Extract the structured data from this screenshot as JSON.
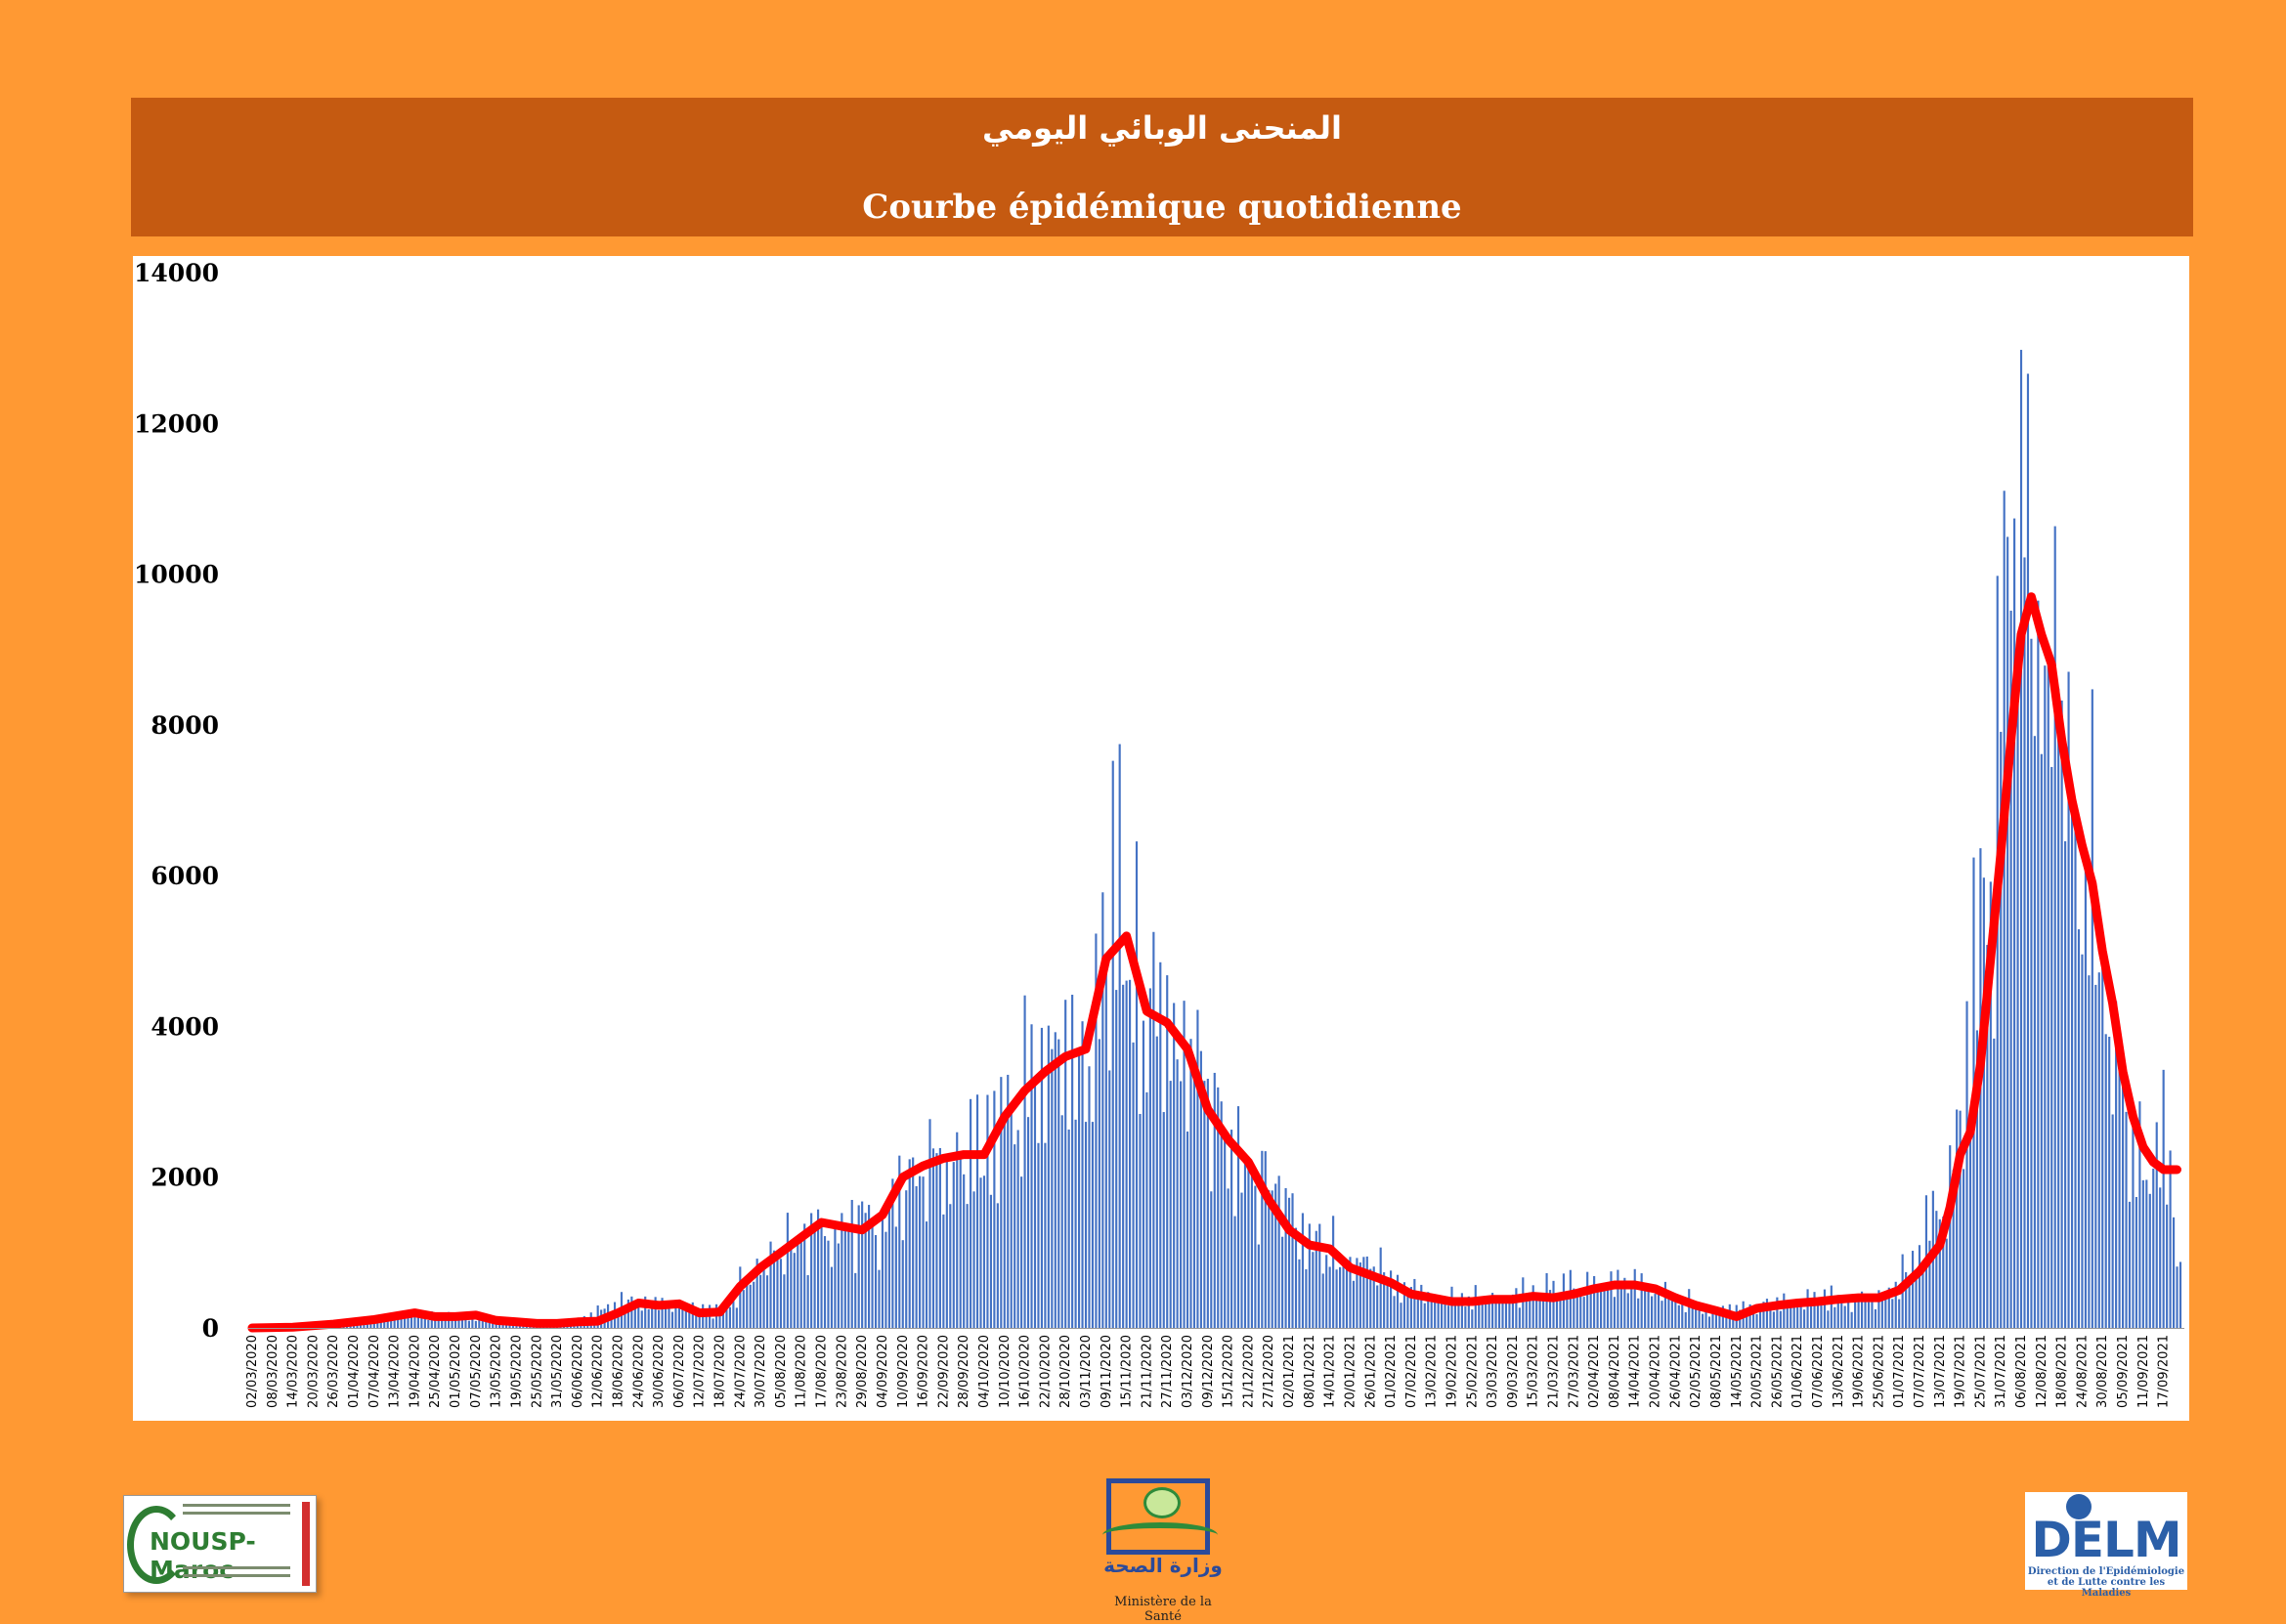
{
  "header": {
    "title_ar": "المنحنى الوبائي اليومي",
    "title_fr": "Courbe épidémique quotidienne"
  },
  "logos": {
    "left": {
      "name": "NOUSP-Maroc"
    },
    "center": {
      "text_ar": "وزارة الصحة",
      "caption": "Ministère de la Santé"
    },
    "right": {
      "name": "DELM",
      "caption_line1": "Direction de l'Epidémiologie",
      "caption_line2": "et de Lutte contre les Maladies"
    }
  },
  "colors": {
    "background": "#FF9933",
    "header": "#C55A11",
    "bars": "#4472C4",
    "moving_average": "#FF0000"
  },
  "chart_data": {
    "type": "bar",
    "title": "Courbe épidémique quotidienne",
    "x_start": "02/03/2020",
    "x_end": "22/09/2021",
    "tick_interval_days": 6,
    "x_tick_labels": [
      "02/03/2020",
      "08/03/2020",
      "14/03/2020",
      "20/03/2020",
      "26/03/2020",
      "01/04/2020",
      "07/04/2020",
      "13/04/2020",
      "19/04/2020",
      "25/04/2020",
      "01/05/2020",
      "07/05/2020",
      "13/05/2020",
      "19/05/2020",
      "25/05/2020",
      "31/05/2020",
      "06/06/2020",
      "12/06/2020",
      "18/06/2020",
      "24/06/2020",
      "30/06/2020",
      "06/07/2020",
      "12/07/2020",
      "18/07/2020",
      "24/07/2020",
      "30/07/2020",
      "05/08/2020",
      "11/08/2020",
      "17/08/2020",
      "23/08/2020",
      "29/08/2020",
      "04/09/2020",
      "10/09/2020",
      "16/09/2020",
      "22/09/2020",
      "28/09/2020",
      "04/10/2020",
      "10/10/2020",
      "16/10/2020",
      "22/10/2020",
      "28/10/2020",
      "03/11/2020",
      "09/11/2020",
      "15/11/2020",
      "21/11/2020",
      "27/11/2020",
      "03/12/2020",
      "09/12/2020",
      "15/12/2020",
      "21/12/2020",
      "27/12/2020",
      "02/01/2021",
      "08/01/2021",
      "14/01/2021",
      "20/01/2021",
      "26/01/2021",
      "01/02/2021",
      "07/02/2021",
      "13/02/2021",
      "19/02/2021",
      "25/02/2021",
      "03/03/2021",
      "09/03/2021",
      "15/03/2021",
      "21/03/2021",
      "27/03/2021",
      "02/04/2021",
      "08/04/2021",
      "14/04/2021",
      "20/04/2021",
      "26/04/2021",
      "02/05/2021",
      "08/05/2021",
      "14/05/2021",
      "20/05/2021",
      "26/05/2021",
      "01/06/2021",
      "07/06/2021",
      "13/06/2021",
      "19/06/2021",
      "25/06/2021",
      "01/07/2021",
      "07/07/2021",
      "13/07/2021",
      "19/07/2021",
      "25/07/2021",
      "31/07/2021",
      "06/08/2021",
      "12/08/2021",
      "18/08/2021",
      "24/08/2021",
      "30/08/2021",
      "05/09/2021",
      "11/09/2021",
      "17/09/2021"
    ],
    "ylim": [
      0,
      14000
    ],
    "yticks": [
      0,
      2000,
      4000,
      6000,
      8000,
      10000,
      12000,
      14000
    ],
    "series": [
      {
        "kind": "bar",
        "color": "#4472C4",
        "description": "daily cases, approximate values at tick dates",
        "x": [
          "02/03/2020",
          "14/03/2020",
          "26/03/2020",
          "07/04/2020",
          "19/04/2020",
          "01/05/2020",
          "13/05/2020",
          "25/05/2020",
          "06/06/2020",
          "18/06/2020",
          "24/06/2020",
          "06/07/2020",
          "18/07/2020",
          "30/07/2020",
          "11/08/2020",
          "23/08/2020",
          "04/09/2020",
          "16/09/2020",
          "28/09/2020",
          "10/10/2020",
          "22/10/2020",
          "03/11/2020",
          "09/11/2020",
          "12/11/2020",
          "15/11/2020",
          "21/11/2020",
          "03/12/2020",
          "15/12/2020",
          "27/12/2020",
          "08/01/2021",
          "20/01/2021",
          "01/02/2021",
          "13/02/2021",
          "25/02/2021",
          "09/03/2021",
          "21/03/2021",
          "02/04/2021",
          "14/04/2021",
          "26/04/2021",
          "08/05/2021",
          "20/05/2021",
          "01/06/2021",
          "13/06/2021",
          "25/06/2021",
          "07/07/2021",
          "13/07/2021",
          "19/07/2021",
          "25/07/2021",
          "31/07/2021",
          "04/08/2021",
          "06/08/2021",
          "09/08/2021",
          "12/08/2021",
          "18/08/2021",
          "24/08/2021",
          "30/08/2021",
          "05/09/2021",
          "11/09/2021",
          "17/09/2021",
          "22/09/2021"
        ],
        "y": [
          0,
          20,
          60,
          100,
          200,
          170,
          100,
          70,
          90,
          320,
          350,
          300,
          220,
          900,
          1250,
          1450,
          1500,
          2200,
          2300,
          2800,
          3500,
          3800,
          5300,
          5600,
          5200,
          4300,
          3900,
          2600,
          2100,
          1200,
          900,
          700,
          450,
          400,
          450,
          500,
          620,
          600,
          400,
          250,
          320,
          350,
          400,
          380,
          1000,
          1600,
          2600,
          5000,
          8500,
          10000,
          11500,
          10200,
          9500,
          8300,
          6500,
          4800,
          2900,
          2300,
          2400,
          900
        ]
      },
      {
        "kind": "line",
        "color": "#FF0000",
        "description": "moving average",
        "x": [
          "02/03/2020",
          "14/03/2020",
          "26/03/2020",
          "07/04/2020",
          "19/04/2020",
          "25/04/2020",
          "01/05/2020",
          "07/05/2020",
          "13/05/2020",
          "19/05/2020",
          "25/05/2020",
          "31/05/2020",
          "06/06/2020",
          "12/06/2020",
          "18/06/2020",
          "24/06/2020",
          "30/06/2020",
          "06/07/2020",
          "12/07/2020",
          "18/07/2020",
          "24/07/2020",
          "30/07/2020",
          "05/08/2020",
          "11/08/2020",
          "17/08/2020",
          "23/08/2020",
          "29/08/2020",
          "04/09/2020",
          "10/09/2020",
          "16/09/2020",
          "22/09/2020",
          "28/09/2020",
          "04/10/2020",
          "10/10/2020",
          "16/10/2020",
          "22/10/2020",
          "28/10/2020",
          "03/11/2020",
          "09/11/2020",
          "15/11/2020",
          "21/11/2020",
          "27/11/2020",
          "03/12/2020",
          "09/12/2020",
          "15/12/2020",
          "21/12/2020",
          "27/12/2020",
          "02/01/2021",
          "08/01/2021",
          "14/01/2021",
          "20/01/2021",
          "26/01/2021",
          "01/02/2021",
          "07/02/2021",
          "13/02/2021",
          "19/02/2021",
          "25/02/2021",
          "03/03/2021",
          "09/03/2021",
          "15/03/2021",
          "21/03/2021",
          "27/03/2021",
          "02/04/2021",
          "08/04/2021",
          "14/04/2021",
          "20/04/2021",
          "26/04/2021",
          "02/05/2021",
          "08/05/2021",
          "14/05/2021",
          "20/05/2021",
          "26/05/2021",
          "01/06/2021",
          "07/06/2021",
          "13/06/2021",
          "19/06/2021",
          "25/06/2021",
          "01/07/2021",
          "07/07/2021",
          "13/07/2021",
          "16/07/2021",
          "19/07/2021",
          "22/07/2021",
          "25/07/2021",
          "31/07/2021",
          "03/08/2021",
          "06/08/2021",
          "09/08/2021",
          "12/08/2021",
          "15/08/2021",
          "18/08/2021",
          "21/08/2021",
          "24/08/2021",
          "27/08/2021",
          "30/08/2021",
          "02/09/2021",
          "05/09/2021",
          "08/09/2021",
          "11/09/2021",
          "14/09/2021",
          "17/09/2021",
          "21/09/2021"
        ],
        "y": [
          0,
          10,
          50,
          110,
          200,
          150,
          150,
          170,
          100,
          80,
          60,
          60,
          80,
          90,
          200,
          330,
          300,
          320,
          200,
          210,
          550,
          800,
          1000,
          1200,
          1400,
          1350,
          1300,
          1500,
          2000,
          2150,
          2250,
          2300,
          2300,
          2800,
          3150,
          3400,
          3600,
          3700,
          4900,
          5200,
          4200,
          4050,
          3700,
          2900,
          2500,
          2200,
          1700,
          1300,
          1100,
          1050,
          800,
          700,
          600,
          450,
          400,
          350,
          350,
          380,
          380,
          420,
          400,
          450,
          520,
          570,
          570,
          520,
          400,
          300,
          230,
          150,
          260,
          300,
          330,
          350,
          380,
          400,
          400,
          500,
          750,
          1100,
          1600,
          2300,
          2600,
          3500,
          6300,
          7800,
          9200,
          9700,
          9200,
          8800,
          7800,
          7000,
          6400,
          5900,
          5000,
          4300,
          3400,
          2800,
          2400,
          2200,
          2100,
          2100
        ]
      }
    ]
  }
}
